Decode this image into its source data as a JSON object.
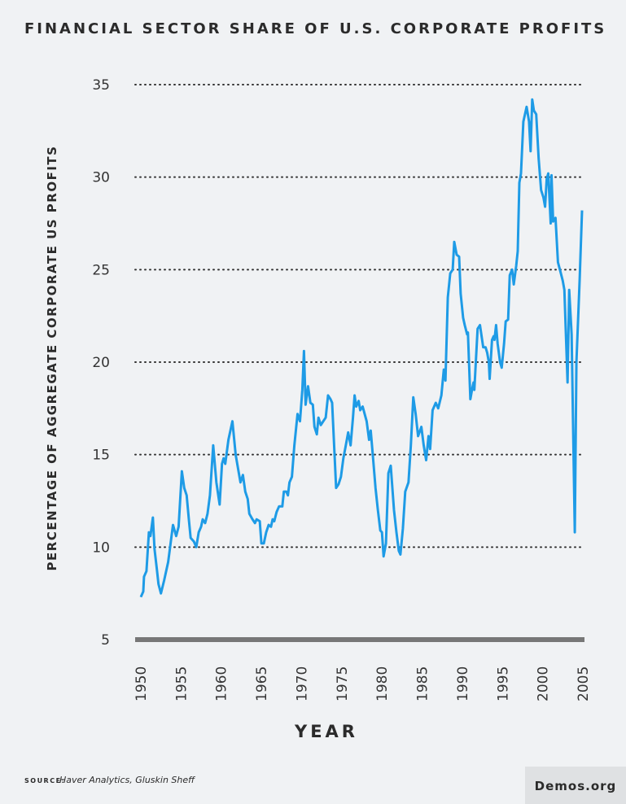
{
  "chart_data": {
    "type": "line",
    "title": "FINANCIAL SECTOR SHARE OF U.S. CORPORATE PROFITS",
    "y_label": "PERCENTAGE OF AGGREGATE CORPORATE US PROFITS",
    "x_label": "YEAR",
    "source": {
      "label": "SOURCE:",
      "text": "Haver Analytics, Gluskin Sheff"
    },
    "brand": "Demos.org",
    "x": [
      1950.0,
      1950.3,
      1950.4,
      1950.7,
      1951.0,
      1951.2,
      1951.5,
      1951.7,
      1952.0,
      1952.2,
      1952.5,
      1952.9,
      1953.4,
      1954.0,
      1954.4,
      1954.7,
      1955.1,
      1955.4,
      1955.7,
      1956.0,
      1956.2,
      1956.6,
      1956.9,
      1957.2,
      1957.5,
      1957.7,
      1958.0,
      1958.3,
      1958.6,
      1959.0,
      1959.4,
      1959.8,
      1960.1,
      1960.3,
      1960.5,
      1960.9,
      1961.4,
      1961.8,
      1962.2,
      1962.4,
      1962.7,
      1963.0,
      1963.3,
      1963.5,
      1963.9,
      1964.2,
      1964.4,
      1964.8,
      1965.0,
      1965.3,
      1965.6,
      1965.9,
      1966.2,
      1966.4,
      1966.6,
      1966.9,
      1967.2,
      1967.6,
      1967.8,
      1968.1,
      1968.3,
      1968.5,
      1968.8,
      1969.1,
      1969.5,
      1969.8,
      1970.1,
      1970.3,
      1970.5,
      1970.8,
      1971.1,
      1971.4,
      1971.6,
      1971.9,
      1972.1,
      1972.4,
      1972.7,
      1973.0,
      1973.3,
      1973.6,
      1973.8,
      1974.3,
      1974.6,
      1974.9,
      1975.2,
      1975.5,
      1975.8,
      1976.1,
      1976.4,
      1976.6,
      1976.8,
      1977.1,
      1977.3,
      1977.6,
      1978.1,
      1978.4,
      1978.6,
      1978.9,
      1979.2,
      1979.5,
      1979.8,
      1980.0,
      1980.2,
      1980.5,
      1980.8,
      1981.1,
      1981.5,
      1981.8,
      1982.1,
      1982.3,
      1982.6,
      1982.9,
      1983.3,
      1983.6,
      1983.9,
      1984.2,
      1984.5,
      1984.9,
      1985.2,
      1985.5,
      1985.8,
      1986.0,
      1986.3,
      1986.7,
      1987.0,
      1987.4,
      1987.7,
      1987.9,
      1988.2,
      1988.5,
      1988.8,
      1989.0,
      1989.3,
      1989.6,
      1989.8,
      1990.1,
      1990.3,
      1990.6,
      1990.7,
      1990.9,
      1991.0,
      1991.2,
      1991.4,
      1991.5,
      1991.9,
      1992.2,
      1992.6,
      1992.9,
      1993.1,
      1993.3,
      1993.4,
      1993.7,
      1993.9,
      1994.0,
      1994.2,
      1994.4,
      1994.7,
      1994.9,
      1995.2,
      1995.4,
      1995.7,
      1995.9,
      1996.2,
      1996.4,
      1996.7,
      1996.9,
      1997.1,
      1997.3,
      1997.6,
      1997.8,
      1998.0,
      1998.3,
      1998.5,
      1998.7,
      1998.9,
      1999.2,
      1999.5,
      1999.8,
      2000.1,
      2000.3,
      2000.5,
      2000.7,
      2001.0,
      2001.1,
      2001.3,
      2001.6,
      2001.9,
      2002.2,
      2002.5,
      2002.7,
      2003.1,
      2003.3,
      2003.6,
      2004.0,
      2004.2,
      2004.6,
      2004.9
    ],
    "series": [
      {
        "name": "Financial sector share",
        "color": "#1e9be6",
        "values": [
          7.3,
          7.6,
          8.4,
          8.7,
          10.8,
          10.6,
          11.6,
          9.9,
          8.8,
          8.0,
          7.5,
          8.2,
          9.2,
          11.2,
          10.6,
          11.1,
          14.1,
          13.2,
          12.8,
          11.4,
          10.5,
          10.3,
          10.0,
          10.8,
          11.1,
          11.5,
          11.3,
          11.8,
          12.8,
          15.5,
          13.5,
          12.3,
          14.5,
          14.8,
          14.5,
          15.8,
          16.8,
          15.0,
          14.0,
          13.5,
          13.9,
          13.0,
          12.6,
          11.8,
          11.5,
          11.3,
          11.5,
          11.4,
          10.2,
          10.2,
          10.8,
          11.2,
          11.1,
          11.5,
          11.4,
          11.9,
          12.2,
          12.2,
          13.0,
          13.0,
          12.8,
          13.5,
          13.8,
          15.5,
          17.2,
          16.8,
          18.5,
          20.6,
          17.7,
          18.7,
          17.8,
          17.7,
          16.5,
          16.1,
          17.0,
          16.6,
          16.8,
          17.0,
          18.2,
          18.0,
          17.8,
          13.2,
          13.4,
          13.8,
          14.8,
          15.5,
          16.2,
          15.5,
          17.0,
          18.2,
          17.6,
          17.9,
          17.4,
          17.6,
          16.8,
          15.8,
          16.3,
          14.8,
          13.2,
          12.0,
          10.9,
          10.8,
          9.5,
          10.2,
          14.0,
          14.4,
          12.0,
          10.8,
          9.8,
          9.6,
          11.0,
          13.0,
          13.5,
          15.5,
          18.1,
          17.2,
          16.0,
          16.5,
          15.5,
          14.7,
          16.0,
          15.3,
          17.4,
          17.8,
          17.5,
          18.2,
          19.6,
          19.0,
          23.5,
          24.8,
          25.0,
          26.5,
          25.8,
          25.7,
          23.7,
          22.4,
          22.0,
          21.5,
          21.6,
          19.2,
          18.0,
          18.5,
          18.9,
          18.5,
          21.8,
          22.0,
          20.8,
          20.8,
          20.5,
          20.0,
          19.1,
          21.2,
          21.4,
          21.2,
          22.0,
          21.0,
          20.0,
          19.7,
          21.0,
          22.2,
          22.3,
          24.7,
          25.0,
          24.2,
          25.2,
          26.0,
          29.7,
          30.2,
          33.0,
          33.4,
          33.8,
          33.0,
          31.4,
          34.2,
          33.6,
          33.4,
          31.0,
          29.3,
          28.9,
          28.4,
          29.9,
          30.2,
          27.5,
          30.1,
          27.6,
          27.8,
          25.4,
          24.9,
          24.4,
          23.9,
          18.9,
          23.9,
          21.5,
          10.8,
          20.0,
          24.5,
          28.2
        ]
      }
    ],
    "xlim": [
      1950,
      2005
    ],
    "xticks": [
      1950,
      1955,
      1960,
      1965,
      1970,
      1975,
      1980,
      1985,
      1990,
      1995,
      2000,
      2005
    ],
    "ylim": [
      5,
      35
    ],
    "yticks": [
      5,
      10,
      15,
      20,
      25,
      30,
      35
    ],
    "grid": true
  }
}
